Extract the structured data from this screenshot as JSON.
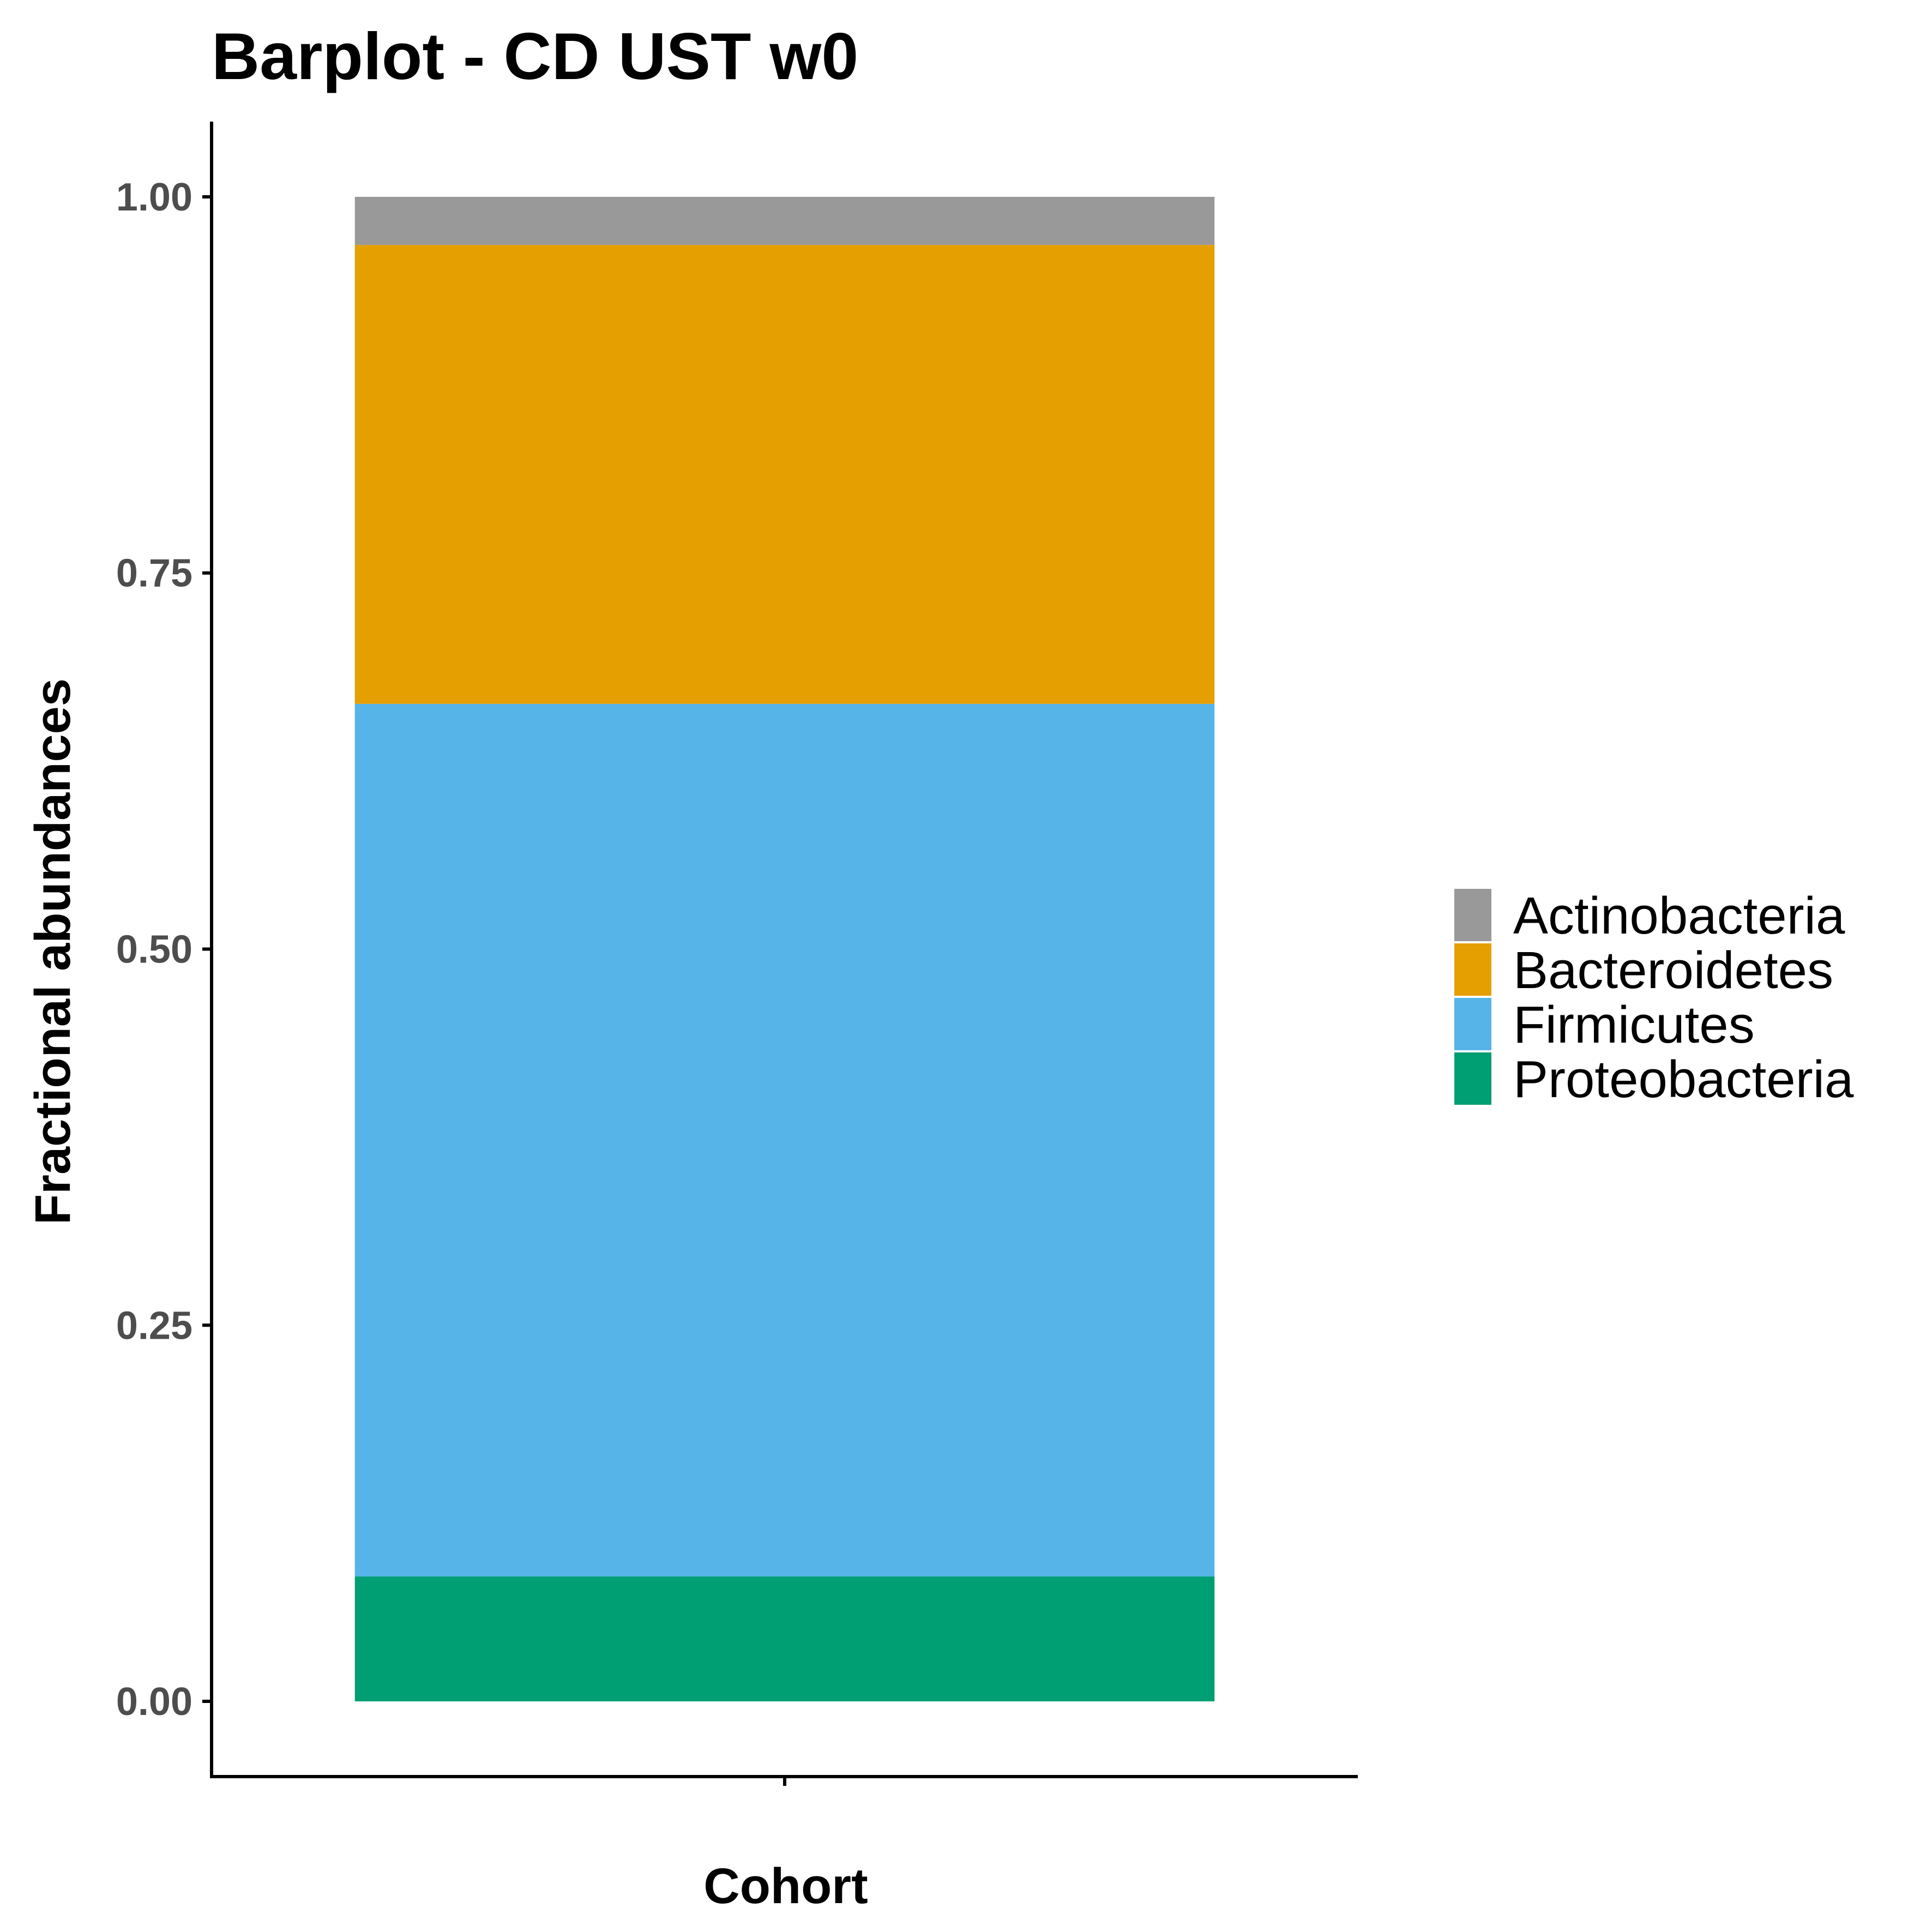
{
  "chart_data": {
    "type": "bar",
    "stacked": true,
    "title": "Barplot - CD UST w0",
    "xlabel": "Cohort",
    "ylabel": "Fractional abundances",
    "categories": [
      ""
    ],
    "ylim": [
      -0.05,
      1.05
    ],
    "yticks": [
      0.0,
      0.25,
      0.5,
      0.75,
      1.0
    ],
    "ytick_labels": [
      "0.00",
      "0.25",
      "0.50",
      "0.75",
      "1.00"
    ],
    "grid": false,
    "legend_position": "right",
    "series": [
      {
        "name": "Proteobacteria",
        "values": [
          0.083
        ],
        "color": "#009E73"
      },
      {
        "name": "Firmicutes",
        "values": [
          0.58
        ],
        "color": "#56B4E9"
      },
      {
        "name": "Bacteroidetes",
        "values": [
          0.305
        ],
        "color": "#E69F00"
      },
      {
        "name": "Actinobacteria",
        "values": [
          0.032
        ],
        "color": "#999999"
      }
    ],
    "legend": [
      "Actinobacteria",
      "Bacteroidetes",
      "Firmicutes",
      "Proteobacteria"
    ]
  }
}
